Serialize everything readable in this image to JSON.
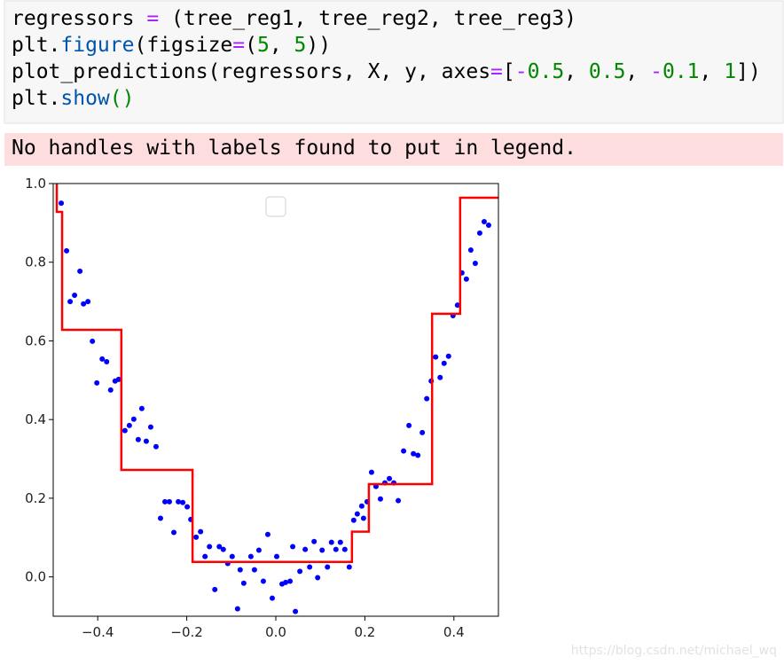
{
  "code": {
    "lines": [
      [
        {
          "text": "regressors ",
          "color": "#000000"
        },
        {
          "text": "=",
          "color": "#aa22ff"
        },
        {
          "text": " (tree_reg1, tree_reg2, tree_reg3)",
          "color": "#000000"
        }
      ],
      [
        {
          "text": "plt.",
          "color": "#000000"
        },
        {
          "text": "figure",
          "color": "#0055aa"
        },
        {
          "text": "(figsize",
          "color": "#000000"
        },
        {
          "text": "=",
          "color": "#aa22ff"
        },
        {
          "text": "(",
          "color": "#000000"
        },
        {
          "text": "5",
          "color": "#008800"
        },
        {
          "text": ", ",
          "color": "#000000"
        },
        {
          "text": "5",
          "color": "#008800"
        },
        {
          "text": "))",
          "color": "#000000"
        }
      ],
      [
        {
          "text": "plot_predictions(regressors, X, y, axes",
          "color": "#000000"
        },
        {
          "text": "=",
          "color": "#aa22ff"
        },
        {
          "text": "[",
          "color": "#000000"
        },
        {
          "text": "-",
          "color": "#aa22ff"
        },
        {
          "text": "0.5",
          "color": "#008800"
        },
        {
          "text": ", ",
          "color": "#000000"
        },
        {
          "text": "0.5",
          "color": "#008800"
        },
        {
          "text": ", ",
          "color": "#000000"
        },
        {
          "text": "-",
          "color": "#aa22ff"
        },
        {
          "text": "0.1",
          "color": "#008800"
        },
        {
          "text": ", ",
          "color": "#000000"
        },
        {
          "text": "1",
          "color": "#008800"
        },
        {
          "text": "])",
          "color": "#000000"
        }
      ],
      [
        {
          "text": "plt.",
          "color": "#000000"
        },
        {
          "text": "show",
          "color": "#0055aa"
        },
        {
          "text": "()",
          "color": "#008800"
        }
      ]
    ]
  },
  "warning": "No handles with labels found to put in legend.",
  "watermark": "https://blog.csdn.net/michael_wq",
  "chart_data": {
    "type": "scatter",
    "xlim": [
      -0.5,
      0.5
    ],
    "ylim": [
      -0.1,
      1
    ],
    "xticks": [
      {
        "value": -0.4,
        "label": "−0.4"
      },
      {
        "value": -0.2,
        "label": "−0.2"
      },
      {
        "value": 0,
        "label": "0.0"
      },
      0.2,
      0.4
    ],
    "yticks": [
      {
        "value": 0,
        "label": "0.0"
      },
      0.2,
      0.4,
      0.6,
      0.8,
      {
        "value": 1,
        "label": "1.0"
      }
    ],
    "series": [
      {
        "type": "scatter",
        "color": "#0000ff",
        "x": [
          -0.482,
          -0.47,
          -0.462,
          -0.452,
          -0.44,
          -0.432,
          -0.422,
          -0.412,
          -0.402,
          -0.39,
          -0.38,
          -0.371,
          -0.361,
          -0.353,
          -0.339,
          -0.329,
          -0.319,
          -0.309,
          -0.301,
          -0.291,
          -0.281,
          -0.269,
          -0.259,
          -0.249,
          -0.239,
          -0.229,
          -0.219,
          -0.209,
          -0.199,
          -0.191,
          -0.179,
          -0.169,
          -0.159,
          -0.149,
          -0.137,
          -0.127,
          -0.118,
          -0.108,
          -0.098,
          -0.086,
          -0.08,
          -0.072,
          -0.056,
          -0.048,
          -0.038,
          -0.028,
          -0.018,
          -0.008,
          0.002,
          0.014,
          0.022,
          0.032,
          0.038,
          0.044,
          0.054,
          0.066,
          0.076,
          0.086,
          0.094,
          0.104,
          0.116,
          0.125,
          0.135,
          0.145,
          0.155,
          0.165,
          0.175,
          0.183,
          0.193,
          0.197,
          0.205,
          0.215,
          0.225,
          0.235,
          0.245,
          0.255,
          0.265,
          0.275,
          0.287,
          0.299,
          0.309,
          0.319,
          0.329,
          0.339,
          0.349,
          0.359,
          0.369,
          0.378,
          0.388,
          0.398,
          0.408,
          0.418,
          0.428,
          0.438,
          0.448,
          0.458,
          0.468,
          0.478
        ],
        "values": [
          0.95,
          0.829,
          0.7,
          0.716,
          0.777,
          0.694,
          0.7,
          0.599,
          0.493,
          0.554,
          0.547,
          0.475,
          0.498,
          0.502,
          0.372,
          0.385,
          0.401,
          0.349,
          0.428,
          0.345,
          0.381,
          0.331,
          0.149,
          0.191,
          0.191,
          0.113,
          0.191,
          0.189,
          0.178,
          0.146,
          0.101,
          0.115,
          0.052,
          0.077,
          -0.032,
          0.077,
          0.07,
          0.034,
          0.052,
          -0.081,
          0.018,
          -0.016,
          0.052,
          0.018,
          0.068,
          -0.011,
          0.108,
          -0.054,
          0.052,
          -0.018,
          -0.014,
          -0.011,
          0.077,
          -0.088,
          0.014,
          0.07,
          0.025,
          0.09,
          -0.002,
          0.068,
          0.025,
          0.088,
          0.07,
          0.088,
          0.07,
          0.025,
          0.144,
          0.16,
          0.18,
          0.149,
          0.191,
          0.266,
          0.23,
          0.198,
          0.239,
          0.25,
          0.239,
          0.194,
          0.32,
          0.385,
          0.313,
          0.309,
          0.367,
          0.453,
          0.498,
          0.559,
          0.507,
          0.543,
          0.561,
          0.664,
          0.691,
          0.773,
          0.757,
          0.831,
          0.797,
          0.874,
          0.903,
          0.894
        ]
      },
      {
        "type": "line",
        "color": "#ff0000",
        "x": [
          -0.5,
          -0.492,
          -0.492,
          -0.48,
          -0.48,
          -0.347,
          -0.347,
          -0.187,
          -0.187,
          0.171,
          0.171,
          0.209,
          0.209,
          0.351,
          0.351,
          0.414,
          0.414,
          0.5
        ],
        "values": [
          1.02,
          1.02,
          0.928,
          0.928,
          0.628,
          0.628,
          0.272,
          0.272,
          0.038,
          0.038,
          0.115,
          0.115,
          0.236,
          0.236,
          0.669,
          0.669,
          0.964,
          0.964
        ]
      }
    ]
  }
}
